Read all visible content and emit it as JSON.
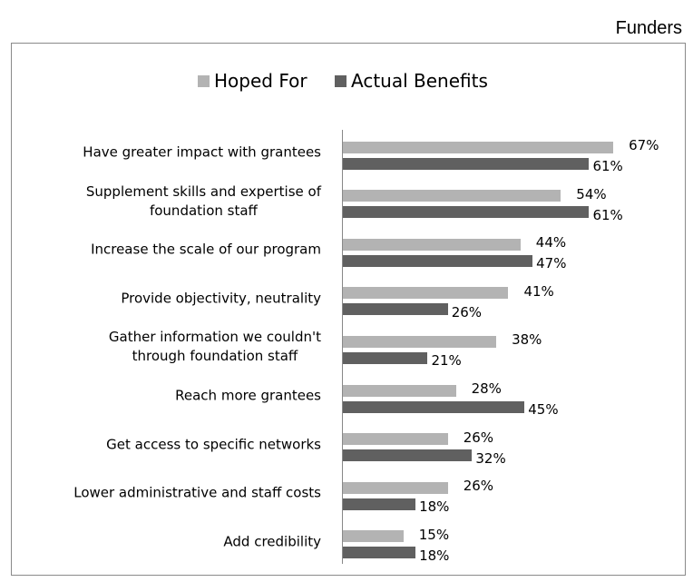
{
  "chart_data": {
    "type": "bar",
    "orientation": "horizontal",
    "title": "Funders",
    "categories": [
      "Have greater impact with grantees",
      "Supplement skills and expertise of\nfoundation staff",
      "Increase the scale of our program",
      "Provide objectivity, neutrality",
      "Gather information we couldn't\nthrough foundation staff",
      "Reach more grantees",
      "Get access to specific networks",
      "Lower administrative and staff costs",
      "Add credibility"
    ],
    "series": [
      {
        "name": "Hoped For",
        "color": "#b3b3b3",
        "values": [
          67,
          54,
          44,
          41,
          38,
          28,
          26,
          26,
          15
        ],
        "value_labels": [
          "67%",
          "54%",
          "44%",
          "41%",
          "38%",
          "28%",
          "26%",
          "26%",
          "15%"
        ]
      },
      {
        "name": "Actual Benefits",
        "color": "#606060",
        "values": [
          61,
          61,
          47,
          26,
          21,
          45,
          32,
          18,
          18
        ],
        "value_labels": [
          "61%",
          "61%",
          "47%",
          "26%",
          "21%",
          "45%",
          "32%",
          "18%",
          "18%"
        ]
      }
    ],
    "legend": "top"
  }
}
